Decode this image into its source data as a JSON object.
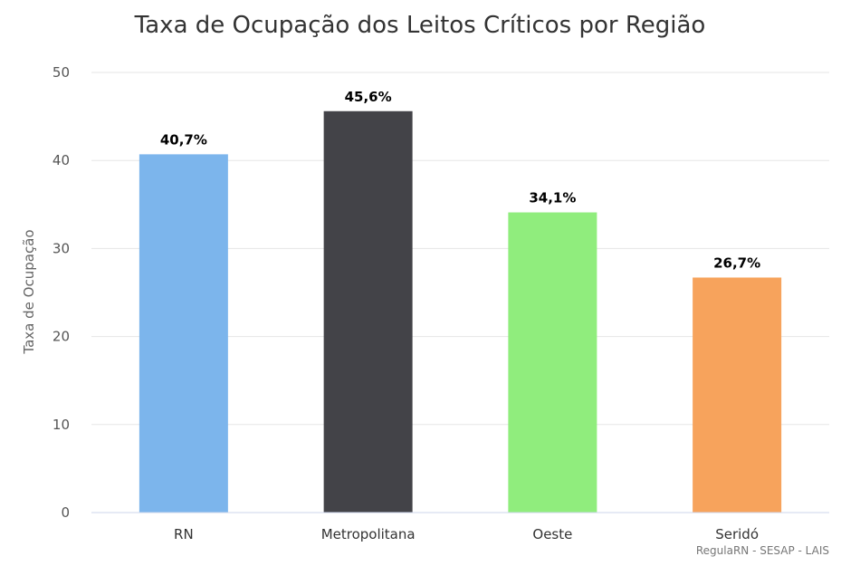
{
  "chart_data": {
    "type": "bar",
    "title": "Taxa de Ocupação dos Leitos Críticos por Região",
    "xlabel": "",
    "ylabel": "Taxa de Ocupação",
    "ylim": [
      0,
      50
    ],
    "yticks": [
      0,
      10,
      20,
      30,
      40,
      50
    ],
    "categories": [
      "RN",
      "Metropolitana",
      "Oeste",
      "Seridó"
    ],
    "values": [
      40.7,
      45.6,
      34.1,
      26.7
    ],
    "data_labels": [
      "40,7%",
      "45,6%",
      "34,1%",
      "26,7%"
    ],
    "colors": [
      "#7cb5ec",
      "#434348",
      "#90ed7d",
      "#f7a35c"
    ],
    "grid": true,
    "legend": "none",
    "credits": "RegulaRN - SESAP - LAIS"
  }
}
